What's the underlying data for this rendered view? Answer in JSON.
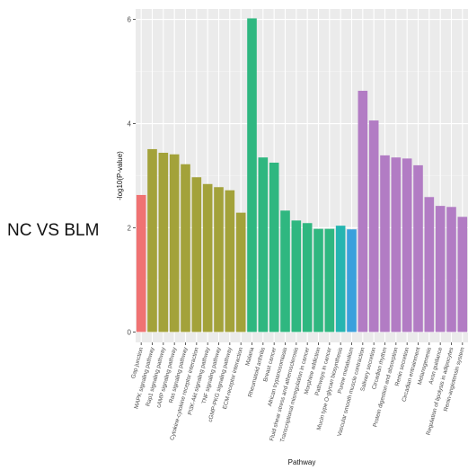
{
  "side_label": "NC VS BLM",
  "chart_data": {
    "type": "bar",
    "xlabel": "Pathway",
    "ylabel": "-log10(P-value)",
    "ylim": [
      -0.2,
      6.2
    ],
    "yticks": [
      0,
      2,
      4,
      6
    ],
    "grid": true,
    "legend": "none",
    "background": "#ebebeb",
    "categories": [
      "Gap junction",
      "MAPK signaling pathway",
      "Rap1 signaling pathway",
      "cAMP signaling pathway",
      "Ras signaling pathway",
      "Cytokine-cytokine receptor interaction",
      "PI3K-Akt signaling pathway",
      "TNF signaling pathway",
      "cGMP-PKG signaling pathway",
      "ECM-receptor interaction",
      "Malaria",
      "Rheumatoid arthritis",
      "Breast cancer",
      "African trypanosomiasis",
      "Fluid shear stress and atherosclerosis",
      "Transcriptional misregulation in cancer",
      "Morphine addiction",
      "Pathways in cancer",
      "Mucin type O-glycan biosynthesis",
      "Purine metabolism",
      "Vascular smooth muscle contraction",
      "Salivary secretion",
      "Circadian rhythm",
      "Protein digestion and absorption",
      "Renin secretion",
      "Circadian entrainment",
      "Melanogenesis",
      "Axon guidance",
      "Regulation of lipolysis in adipocytes",
      "Renin-angiotensin system"
    ],
    "values": [
      2.63,
      3.51,
      3.44,
      3.41,
      3.22,
      2.97,
      2.84,
      2.78,
      2.72,
      2.29,
      6.02,
      3.35,
      3.25,
      2.33,
      2.14,
      2.09,
      1.98,
      1.98,
      2.04,
      1.97,
      4.63,
      4.06,
      3.39,
      3.35,
      3.33,
      3.2,
      2.59,
      2.42,
      2.4,
      2.21
    ],
    "colors": [
      "#f07272",
      "#a3a23a",
      "#a3a23a",
      "#a3a23a",
      "#a3a23a",
      "#a3a23a",
      "#a3a23a",
      "#a3a23a",
      "#a3a23a",
      "#a3a23a",
      "#2fb780",
      "#2fb780",
      "#2fb780",
      "#2fb780",
      "#2fb780",
      "#2fb780",
      "#2fb780",
      "#2fb780",
      "#25b5b0",
      "#3aa0dc",
      "#b27cc4",
      "#b27cc4",
      "#b27cc4",
      "#b27cc4",
      "#b27cc4",
      "#b27cc4",
      "#b27cc4",
      "#b27cc4",
      "#b27cc4",
      "#b27cc4"
    ]
  }
}
